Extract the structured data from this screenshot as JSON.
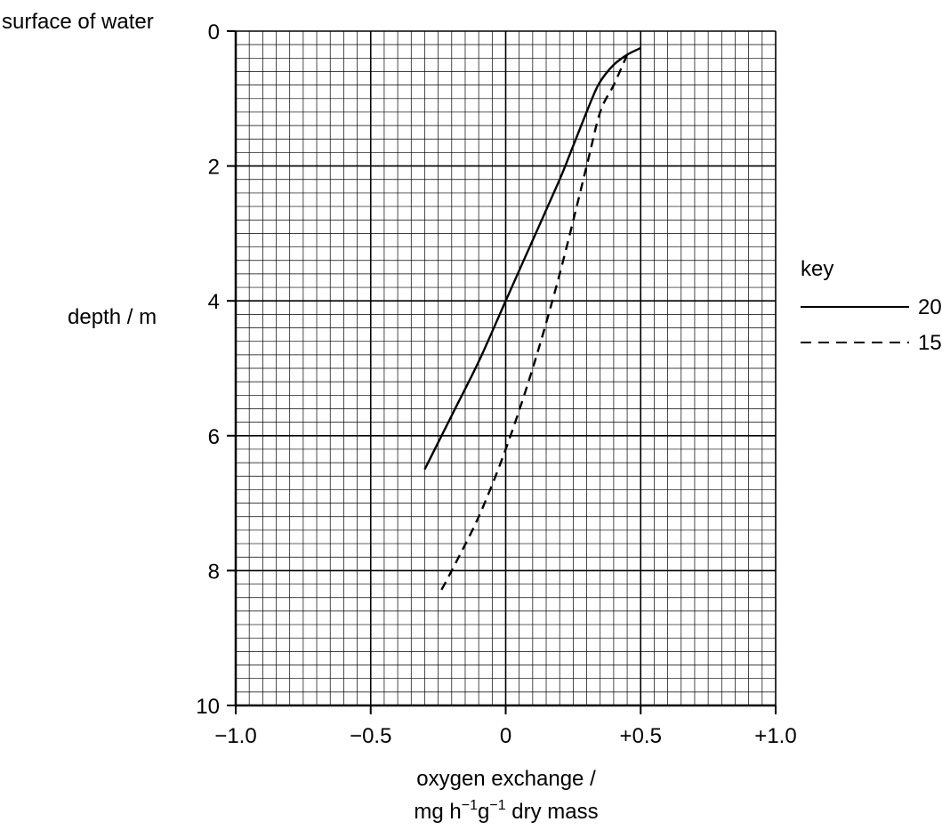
{
  "chart_data": {
    "type": "line",
    "top_label": "surface of water",
    "ylabel": "depth / m",
    "xlabel_line1": "oxygen exchange /",
    "xlabel_line2": {
      "pre": "mg h",
      "sup1": "−1",
      "mid": "g",
      "sup2": "−1",
      "post": " dry mass"
    },
    "xlim": [
      -1.0,
      1.0
    ],
    "ylim": [
      0,
      10
    ],
    "y_inverted": true,
    "grid": true,
    "x_ticks": [
      {
        "value": -1.0,
        "label": "−1.0"
      },
      {
        "value": -0.5,
        "label": "−0.5"
      },
      {
        "value": 0,
        "label": "0"
      },
      {
        "value": 0.5,
        "label": "+0.5"
      },
      {
        "value": 1.0,
        "label": "+1.0"
      }
    ],
    "y_ticks": [
      {
        "value": 0,
        "label": "0"
      },
      {
        "value": 2,
        "label": "2"
      },
      {
        "value": 4,
        "label": "4"
      },
      {
        "value": 6,
        "label": "6"
      },
      {
        "value": 8,
        "label": "8"
      },
      {
        "value": 10,
        "label": "10"
      }
    ],
    "legend": {
      "title": "key",
      "position": "right"
    },
    "series": [
      {
        "name": "20°C",
        "style": "solid",
        "points": [
          {
            "x": 0.5,
            "y": 0.25
          },
          {
            "x": 0.45,
            "y": 0.35
          },
          {
            "x": 0.4,
            "y": 0.5
          },
          {
            "x": 0.35,
            "y": 0.75
          },
          {
            "x": 0.32,
            "y": 1.0
          },
          {
            "x": 0.25,
            "y": 1.7
          },
          {
            "x": 0.2,
            "y": 2.2
          },
          {
            "x": 0.1,
            "y": 3.1
          },
          {
            "x": 0.0,
            "y": 4.0
          },
          {
            "x": -0.1,
            "y": 4.9
          },
          {
            "x": -0.2,
            "y": 5.7
          },
          {
            "x": -0.3,
            "y": 6.5
          }
        ]
      },
      {
        "name": "15°C",
        "style": "dashed",
        "points": [
          {
            "x": 0.45,
            "y": 0.35
          },
          {
            "x": 0.4,
            "y": 0.8
          },
          {
            "x": 0.35,
            "y": 1.2
          },
          {
            "x": 0.3,
            "y": 2.0
          },
          {
            "x": 0.2,
            "y": 3.6
          },
          {
            "x": 0.1,
            "y": 5.0
          },
          {
            "x": 0.0,
            "y": 6.2
          },
          {
            "x": -0.1,
            "y": 7.2
          },
          {
            "x": -0.2,
            "y": 8.0
          },
          {
            "x": -0.24,
            "y": 8.3
          }
        ]
      }
    ]
  }
}
